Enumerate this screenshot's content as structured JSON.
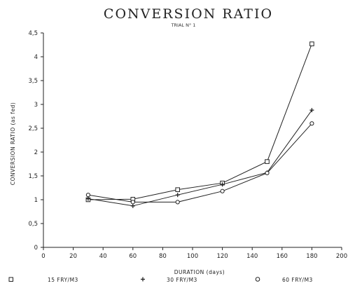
{
  "chart_data": {
    "type": "line",
    "title": "CONVERSION RATIO",
    "subtitle": "TRIAL N° 1",
    "xlabel": "DURATION (days)",
    "ylabel": "CONVERSION RATIO (as fed)",
    "xlim": [
      0,
      200
    ],
    "ylim": [
      0,
      4.5
    ],
    "x_ticks": [
      "0",
      "20",
      "40",
      "60",
      "80",
      "100",
      "120",
      "140",
      "160",
      "180",
      "200"
    ],
    "y_ticks": [
      "0",
      "0,5",
      "1",
      "1,5",
      "2",
      "2,5",
      "3",
      "3,5",
      "4",
      "4,5"
    ],
    "grid": false,
    "legend_position": "bottom",
    "x": [
      30,
      60,
      90,
      120,
      150,
      180
    ],
    "series": [
      {
        "name": "15 FRY/M3",
        "marker": "square",
        "values": [
          1.0,
          1.01,
          1.21,
          1.35,
          1.8,
          4.27
        ]
      },
      {
        "name": "30 FRY/M3",
        "marker": "plus",
        "values": [
          1.02,
          0.87,
          1.1,
          1.32,
          1.57,
          2.88
        ]
      },
      {
        "name": "60 FRY/M3",
        "marker": "circle",
        "values": [
          1.1,
          0.95,
          0.95,
          1.18,
          1.56,
          2.6
        ]
      }
    ]
  }
}
